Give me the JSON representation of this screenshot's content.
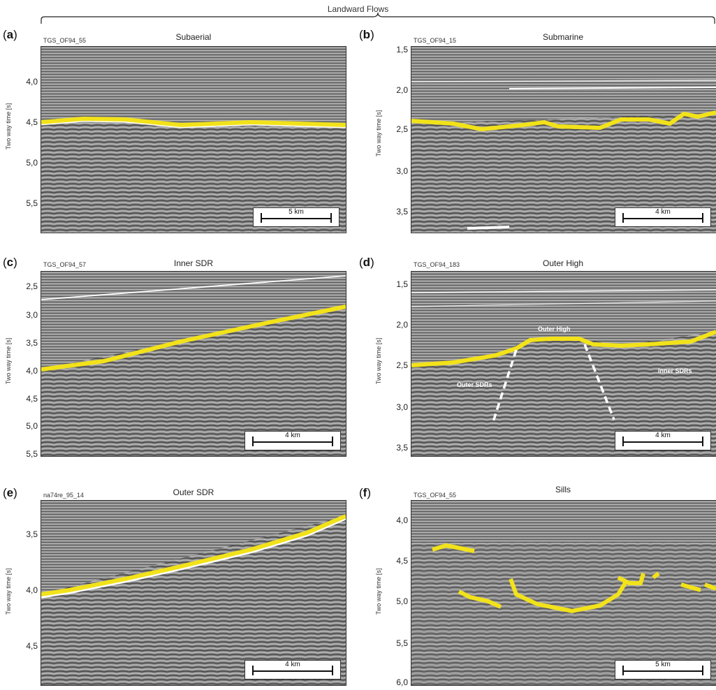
{
  "figure": {
    "header": "Landward Flows",
    "ylabel": "Two way time [s]",
    "panels": [
      {
        "letter": "a",
        "line_id": "TGS_OF94_55",
        "title": "Subaerial",
        "ticks": [
          "4,0",
          "4,5",
          "5,0",
          "5,5"
        ],
        "scale": "5 km"
      },
      {
        "letter": "b",
        "line_id": "TGS_OF94_15",
        "title": "Submarine",
        "ticks": [
          "1,5",
          "2,0",
          "2,5",
          "3,0",
          "3,5"
        ],
        "scale": "4 km"
      },
      {
        "letter": "c",
        "line_id": "TGS_OF94_57",
        "title": "Inner SDR",
        "ticks": [
          "2,5",
          "3,0",
          "3,5",
          "4,0",
          "4,5",
          "5,0",
          "5,5"
        ],
        "scale": "4 km"
      },
      {
        "letter": "d",
        "line_id": "TGS_OF94_183",
        "title": "Outer High",
        "ticks": [
          "1,5",
          "2,0",
          "2,5",
          "3,0",
          "3,5"
        ],
        "scale": "4 km",
        "annotations": [
          "Outer High",
          "Outer SDRs",
          "Inner SDRs"
        ]
      },
      {
        "letter": "e",
        "line_id": "na74re_95_14",
        "title": "Outer SDR",
        "ticks": [
          "3,5",
          "4,0",
          "4,5"
        ],
        "scale": "4 km"
      },
      {
        "letter": "f",
        "line_id": "TGS_OF94_55",
        "title": "Sills",
        "ticks": [
          "4,0",
          "4,5",
          "5,0",
          "5,5",
          "6,0"
        ],
        "scale": "5 km"
      }
    ]
  },
  "colors": {
    "horizon": "#f2e21a",
    "seismic_bg": "#8a8a8a",
    "frame": "#333333"
  }
}
